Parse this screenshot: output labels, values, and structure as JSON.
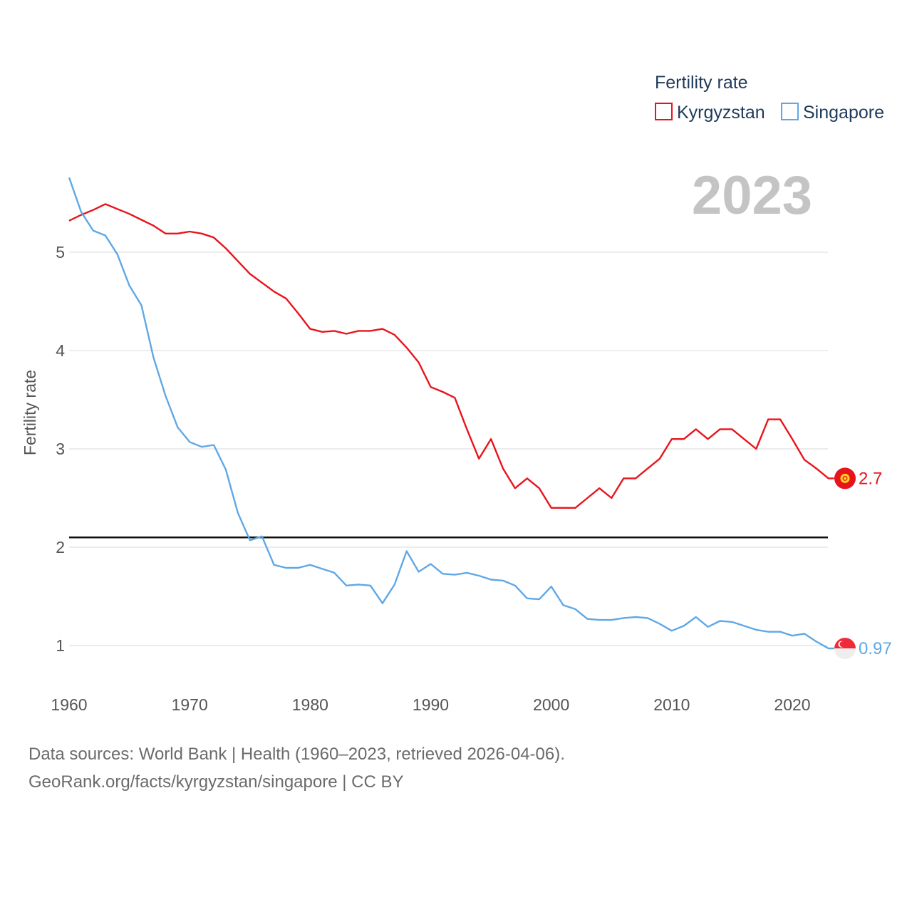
{
  "chart_data": {
    "type": "line",
    "title": "Fertility rate",
    "year_label": "2023",
    "xlabel": "",
    "ylabel": "Fertility rate",
    "xlim": [
      1960,
      2024
    ],
    "ylim": [
      0.6,
      6.0
    ],
    "x_ticks": [
      1960,
      1970,
      1980,
      1990,
      2000,
      2010,
      2020
    ],
    "y_ticks": [
      1,
      2,
      3,
      4,
      5
    ],
    "reference_line": 2.1,
    "legend_position": "top-right",
    "x": [
      1960,
      1961,
      1962,
      1963,
      1964,
      1965,
      1966,
      1967,
      1968,
      1969,
      1970,
      1971,
      1972,
      1973,
      1974,
      1975,
      1976,
      1977,
      1978,
      1979,
      1980,
      1981,
      1982,
      1983,
      1984,
      1985,
      1986,
      1987,
      1988,
      1989,
      1990,
      1991,
      1992,
      1993,
      1994,
      1995,
      1996,
      1997,
      1998,
      1999,
      2000,
      2001,
      2002,
      2003,
      2004,
      2005,
      2006,
      2007,
      2008,
      2009,
      2010,
      2011,
      2012,
      2013,
      2014,
      2015,
      2016,
      2017,
      2018,
      2019,
      2020,
      2021,
      2022,
      2023
    ],
    "series": [
      {
        "name": "Kyrgyzstan",
        "color": "#e8141c",
        "end_label": "2.7",
        "values": [
          5.32,
          5.38,
          5.43,
          5.49,
          5.44,
          5.39,
          5.33,
          5.27,
          5.19,
          5.19,
          5.21,
          5.19,
          5.15,
          5.04,
          4.91,
          4.78,
          4.69,
          4.6,
          4.53,
          4.38,
          4.22,
          4.19,
          4.2,
          4.17,
          4.2,
          4.2,
          4.22,
          4.16,
          4.03,
          3.88,
          3.63,
          3.58,
          3.52,
          3.2,
          2.9,
          3.1,
          2.8,
          2.6,
          2.7,
          2.6,
          2.4,
          2.4,
          2.4,
          2.5,
          2.6,
          2.5,
          2.7,
          2.7,
          2.8,
          2.9,
          3.1,
          3.1,
          3.2,
          3.1,
          3.2,
          3.2,
          3.1,
          3.0,
          3.3,
          3.3,
          3.1,
          2.89,
          2.8,
          2.7
        ]
      },
      {
        "name": "Singapore",
        "color": "#5fa8e6",
        "end_label": "0.97",
        "values": [
          5.76,
          5.41,
          5.22,
          5.17,
          4.98,
          4.66,
          4.46,
          3.93,
          3.54,
          3.22,
          3.07,
          3.02,
          3.04,
          2.79,
          2.35,
          2.07,
          2.11,
          1.82,
          1.79,
          1.79,
          1.82,
          1.78,
          1.74,
          1.61,
          1.62,
          1.61,
          1.43,
          1.62,
          1.96,
          1.75,
          1.83,
          1.73,
          1.72,
          1.74,
          1.71,
          1.67,
          1.66,
          1.61,
          1.48,
          1.47,
          1.6,
          1.41,
          1.37,
          1.27,
          1.26,
          1.26,
          1.28,
          1.29,
          1.28,
          1.22,
          1.15,
          1.2,
          1.29,
          1.19,
          1.25,
          1.24,
          1.2,
          1.16,
          1.14,
          1.14,
          1.1,
          1.12,
          1.04,
          0.97
        ]
      }
    ]
  },
  "footer": {
    "line1": "Data sources: World Bank | Health (1960–2023, retrieved 2026-04-06).",
    "line2": "GeoRank.org/facts/kyrgyzstan/singapore | CC BY"
  }
}
